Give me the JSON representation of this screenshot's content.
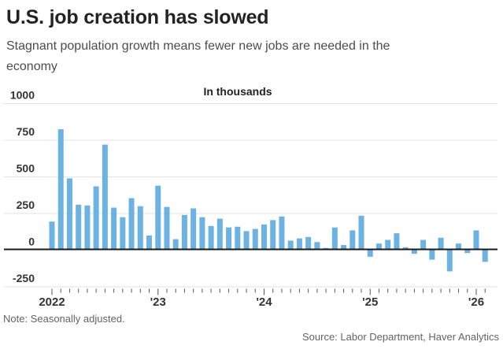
{
  "header": {
    "title": "U.S. job creation has slowed",
    "subtitle": "Stagnant population growth means fewer new jobs are needed in the economy"
  },
  "chart_data": {
    "type": "bar",
    "title": "U.S. job creation has slowed",
    "unit_label": "In thousands",
    "bar_color": "#6CB2E2",
    "grid": true,
    "ylim": [
      -310,
      1000
    ],
    "y_ticks": [
      1000,
      750,
      500,
      250,
      0,
      -250
    ],
    "x_year_ticks": [
      {
        "label": "2022",
        "month_index": 0
      },
      {
        "label": "'23",
        "month_index": 12
      },
      {
        "label": "'24",
        "month_index": 24
      },
      {
        "label": "'25",
        "month_index": 36
      },
      {
        "label": "'26",
        "month_index": 48
      }
    ],
    "categories": [
      "Jan 2022",
      "Feb 2022",
      "Mar 2022",
      "Apr 2022",
      "May 2022",
      "Jun 2022",
      "Jul 2022",
      "Aug 2022",
      "Sep 2022",
      "Oct 2022",
      "Nov 2022",
      "Dec 2022",
      "Jan 2023",
      "Feb 2023",
      "Mar 2023",
      "Apr 2023",
      "May 2023",
      "Jun 2023",
      "Jul 2023",
      "Aug 2023",
      "Sep 2023",
      "Oct 2023",
      "Nov 2023",
      "Dec 2023",
      "Jan 2024",
      "Feb 2024",
      "Mar 2024",
      "Apr 2024",
      "May 2024",
      "Jun 2024",
      "Jul 2024",
      "Aug 2024",
      "Sep 2024",
      "Oct 2024",
      "Nov 2024",
      "Dec 2024",
      "Jan 2025",
      "Feb 2025",
      "Mar 2025",
      "Apr 2025",
      "May 2025",
      "Jun 2025",
      "Jul 2025",
      "Aug 2025",
      "Sep 2025",
      "Oct 2025",
      "Nov 2025",
      "Dec 2025",
      "Jan 2026",
      "Feb 2026"
    ],
    "values": [
      195,
      825,
      490,
      310,
      305,
      435,
      720,
      290,
      225,
      355,
      300,
      100,
      440,
      295,
      75,
      240,
      285,
      225,
      165,
      215,
      155,
      160,
      130,
      145,
      175,
      205,
      230,
      65,
      80,
      90,
      55,
      15,
      155,
      35,
      135,
      235,
      -45,
      45,
      70,
      115,
      20,
      -25,
      70,
      -65,
      85,
      -145,
      45,
      -20,
      135,
      -80
    ]
  },
  "footer": {
    "note": "Note: Seasonally adjusted.",
    "source": "Source: Labor Department, Haver Analytics"
  }
}
